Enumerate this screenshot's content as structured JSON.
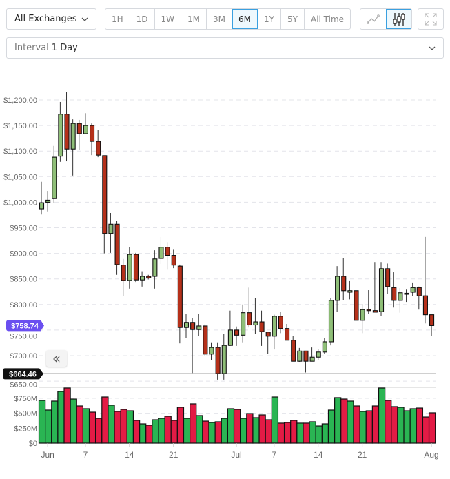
{
  "toolbar": {
    "exchange": "All Exchanges",
    "ranges": [
      "1H",
      "1D",
      "1W",
      "1M",
      "3M",
      "6M",
      "1Y",
      "5Y",
      "All Time"
    ],
    "active_range": "6M",
    "chart_types": [
      "line-chart-icon",
      "candlestick-icon"
    ],
    "active_chart_type": "candlestick",
    "interval_label": "Interval",
    "interval_value": "1 Day"
  },
  "chart_data": {
    "type": "candlestick",
    "fields": [
      "date",
      "open",
      "high",
      "low",
      "close",
      "volume_musd"
    ],
    "candles": [
      [
        "May 31",
        987,
        1040,
        976,
        999,
        715
      ],
      [
        "Jun 1",
        1000,
        1022,
        982,
        1004,
        554
      ],
      [
        "Jun 2",
        1007,
        1110,
        998,
        1088,
        704
      ],
      [
        "Jun 3",
        1090,
        1196,
        1079,
        1172,
        865
      ],
      [
        "Jun 4",
        1172,
        1215,
        1080,
        1104,
        923
      ],
      [
        "Jun 5",
        1104,
        1162,
        1052,
        1154,
        738
      ],
      [
        "Jun 6",
        1154,
        1161,
        1103,
        1134,
        623
      ],
      [
        "Jun 7",
        1134,
        1174,
        1134,
        1150,
        577
      ],
      [
        "Jun 8",
        1150,
        1154,
        1092,
        1119,
        519
      ],
      [
        "Jun 9",
        1119,
        1142,
        1088,
        1092,
        415
      ],
      [
        "Jun 10",
        1091,
        1091,
        900,
        939,
        773
      ],
      [
        "Jun 11",
        939,
        979,
        901,
        957,
        635
      ],
      [
        "Jun 12",
        957,
        963,
        858,
        878,
        531
      ],
      [
        "Jun 13",
        877,
        889,
        817,
        847,
        565
      ],
      [
        "Jun 14",
        847,
        912,
        831,
        898,
        542
      ],
      [
        "Jun 15",
        898,
        901,
        844,
        848,
        381
      ],
      [
        "Jun 16",
        848,
        865,
        835,
        855,
        323
      ],
      [
        "Jun 17",
        855,
        858,
        849,
        852,
        300
      ],
      [
        "Jun 18",
        855,
        906,
        831,
        889,
        392
      ],
      [
        "Jun 19",
        890,
        932,
        879,
        912,
        415
      ],
      [
        "Jun 20",
        912,
        922,
        868,
        896,
        450
      ],
      [
        "Jun 21",
        896,
        907,
        871,
        877,
        381
      ],
      [
        "Jun 22",
        875,
        878,
        724,
        755,
        600
      ],
      [
        "Jun 23",
        755,
        782,
        735,
        765,
        415
      ],
      [
        "Jun 24",
        765,
        774,
        666,
        751,
        658
      ],
      [
        "Jun 25",
        751,
        782,
        738,
        758,
        462
      ],
      [
        "Jun 26",
        758,
        761,
        699,
        703,
        369
      ],
      [
        "Jun 27",
        703,
        726,
        691,
        716,
        346
      ],
      [
        "Jun 28",
        716,
        726,
        653,
        665,
        358
      ],
      [
        "Jun 29",
        665,
        743,
        653,
        720,
        415
      ],
      [
        "Jun 30",
        720,
        788,
        719,
        750,
        577
      ],
      [
        "Jul 1",
        750,
        757,
        719,
        740,
        565
      ],
      [
        "Jul 2",
        740,
        800,
        726,
        784,
        415
      ],
      [
        "Jul 3",
        784,
        833,
        755,
        760,
        496
      ],
      [
        "Jul 4",
        760,
        813,
        742,
        766,
        427
      ],
      [
        "Jul 5",
        766,
        788,
        719,
        747,
        473
      ],
      [
        "Jul 6",
        746,
        746,
        703,
        738,
        392
      ],
      [
        "Jul 7",
        738,
        780,
        712,
        777,
        773
      ],
      [
        "Jul 8",
        777,
        785,
        744,
        753,
        335
      ],
      [
        "Jul 9",
        753,
        762,
        730,
        730,
        346
      ],
      [
        "Jul 10",
        730,
        739,
        689,
        689,
        381
      ],
      [
        "Jul 11",
        689,
        715,
        688,
        709,
        335
      ],
      [
        "Jul 12",
        709,
        709,
        667,
        689,
        335
      ],
      [
        "Jul 13",
        689,
        716,
        689,
        697,
        358
      ],
      [
        "Jul 14",
        697,
        713,
        692,
        707,
        288
      ],
      [
        "Jul 15",
        707,
        735,
        704,
        727,
        323
      ],
      [
        "Jul 16",
        727,
        813,
        720,
        808,
        554
      ],
      [
        "Jul 17",
        808,
        875,
        785,
        855,
        762
      ],
      [
        "Jul 18",
        855,
        891,
        808,
        827,
        738
      ],
      [
        "Jul 19",
        824,
        847,
        810,
        827,
        704
      ],
      [
        "Jul 20",
        827,
        827,
        763,
        769,
        623
      ],
      [
        "Jul 21",
        769,
        801,
        744,
        790,
        531
      ],
      [
        "Jul 22",
        790,
        828,
        781,
        788,
        542
      ],
      [
        "Jul 23",
        788,
        883,
        785,
        785,
        623
      ],
      [
        "Jul 24",
        786,
        883,
        777,
        870,
        923
      ],
      [
        "Jul 25",
        870,
        880,
        821,
        835,
        715
      ],
      [
        "Jul 26",
        833,
        863,
        794,
        808,
        612
      ],
      [
        "Jul 27",
        808,
        832,
        784,
        823,
        600
      ],
      [
        "Jul 28",
        820,
        829,
        805,
        822,
        542
      ],
      [
        "Jul 29",
        824,
        843,
        817,
        833,
        577
      ],
      [
        "Jul 30",
        833,
        835,
        790,
        817,
        588
      ],
      [
        "Jul 31",
        817,
        932,
        763,
        780,
        438
      ],
      [
        "Aug 1",
        780,
        780,
        738,
        758.74,
        508
      ]
    ],
    "price_ticks": [
      {
        "v": 1200,
        "label": "$1,200.00"
      },
      {
        "v": 1150,
        "label": "$1,150.00"
      },
      {
        "v": 1100,
        "label": "$1,100.00"
      },
      {
        "v": 1050,
        "label": "$1,050.00"
      },
      {
        "v": 1000,
        "label": "$1,000.00"
      },
      {
        "v": 950,
        "label": "$950.00"
      },
      {
        "v": 900,
        "label": "$900.00"
      },
      {
        "v": 850,
        "label": "$850.00"
      },
      {
        "v": 800,
        "label": "$800.00"
      },
      {
        "v": 750,
        "label": "$750.00"
      },
      {
        "v": 700,
        "label": "$700.00"
      },
      {
        "v": 650,
        "label": "$650.00"
      }
    ],
    "price_range": [
      650,
      1200
    ],
    "volume_ticks": [
      {
        "v": 0,
        "label": "$0"
      },
      {
        "v": 250,
        "label": "$250M"
      },
      {
        "v": 500,
        "label": "$500M"
      },
      {
        "v": 750,
        "label": "$750M"
      }
    ],
    "x_ticks": [
      {
        "date": "Jun 1",
        "label": "Jun"
      },
      {
        "date": "Jun 7",
        "label": "7"
      },
      {
        "date": "Jun 14",
        "label": "14"
      },
      {
        "date": "Jun 21",
        "label": "21"
      },
      {
        "date": "Jul 1",
        "label": "Jul"
      },
      {
        "date": "Jul 7",
        "label": "7"
      },
      {
        "date": "Jul 14",
        "label": "14"
      },
      {
        "date": "Jul 21",
        "label": "21"
      },
      {
        "date": "Aug 1",
        "label": "Aug"
      }
    ],
    "current_price": {
      "value": 758.74,
      "label": "$758.74",
      "color": "#6a4ff0"
    },
    "marker_line": {
      "value": 664.46,
      "label": "$664.46",
      "color": "#111111"
    },
    "grid": true,
    "colors": {
      "up": "#8fbf78",
      "down": "#b5301a",
      "vol_up": "#2ab553",
      "vol_down": "#e31b45"
    }
  },
  "back_button": "«"
}
